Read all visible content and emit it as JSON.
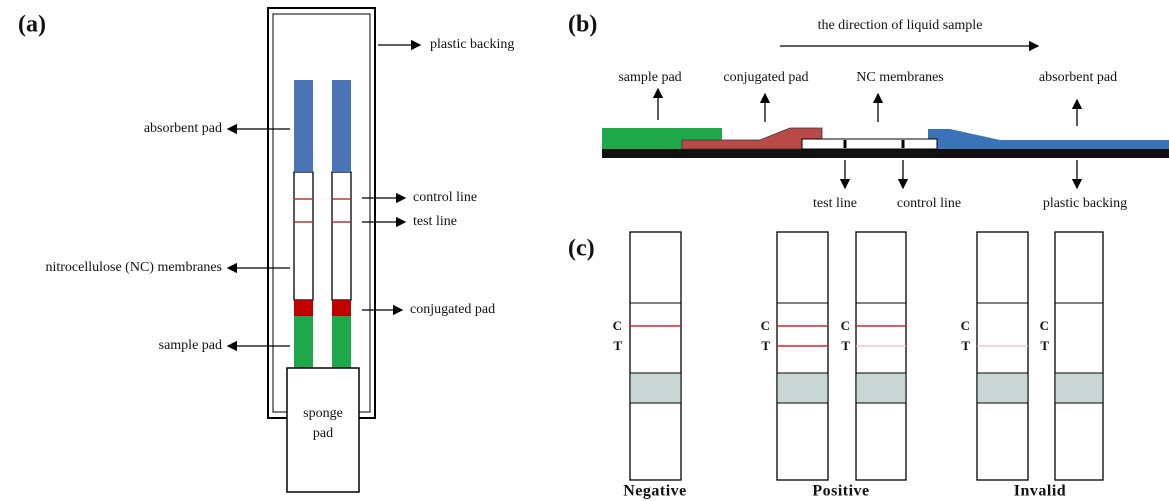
{
  "panel_a": {
    "label": "(a)",
    "plastic_backing": "plastic backing",
    "absorbent_pad": "absorbent pad",
    "control_line": "control line",
    "test_line": "test line",
    "nc_membranes": "nitrocellulose (NC) membranes",
    "conjugated_pad": "conjugated pad",
    "sample_pad": "sample pad",
    "sponge_pad": [
      "sponge",
      "pad"
    ]
  },
  "panel_b": {
    "label": "(b)",
    "direction": "the direction of liquid sample",
    "sample_pad": "sample pad",
    "conjugated_pad": "conjugated pad",
    "nc_membranes": "NC membranes",
    "absorbent_pad": "absorbent pad",
    "test_line": "test line",
    "control_line": "control line",
    "plastic_backing": "plastic backing"
  },
  "panel_c": {
    "label": "(c)",
    "strips": [
      {
        "c": "C",
        "t": "T"
      },
      {
        "c": "C",
        "t": "T"
      },
      {
        "c": "C",
        "t": "T"
      },
      {
        "c": "C",
        "t": "T"
      },
      {
        "c": "C",
        "t": "T"
      }
    ],
    "groups": [
      "Negative",
      "Positive",
      "Invalid"
    ]
  }
}
